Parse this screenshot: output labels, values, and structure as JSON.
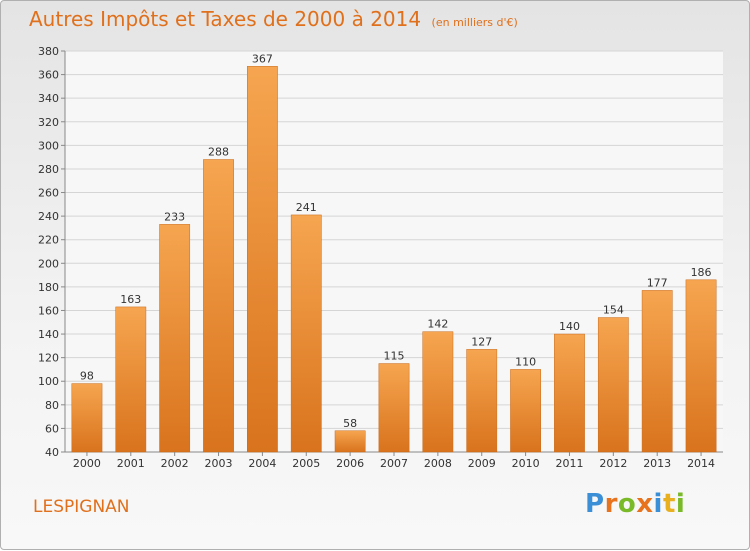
{
  "header": {
    "title": "Autres Impôts et Taxes de 2000 à 2014",
    "subtitle": "(en milliers d'€)"
  },
  "footer": {
    "commune": "LESPIGNAN",
    "brand": [
      "P",
      "r",
      "o",
      "x",
      "i",
      "t",
      "i"
    ],
    "brand_colors": [
      "#3a8fd6",
      "#e8731f",
      "#7ab928",
      "#e8731f",
      "#3a8fd6",
      "#e8b01f",
      "#7ab928"
    ]
  },
  "colors": {
    "bar_top": "#f6a550",
    "bar_bottom": "#d9731d",
    "accent": "#e0701c",
    "grid": "#d5d5d5",
    "axis_text": "#333333"
  },
  "chart_data": {
    "type": "bar",
    "title": "Autres Impôts et Taxes de 2000 à 2014",
    "subtitle": "(en milliers d'€)",
    "categories": [
      "2000",
      "2001",
      "2002",
      "2003",
      "2004",
      "2005",
      "2006",
      "2007",
      "2008",
      "2009",
      "2010",
      "2011",
      "2012",
      "2013",
      "2014"
    ],
    "values": [
      98,
      163,
      233,
      288,
      367,
      241,
      58,
      115,
      142,
      127,
      110,
      140,
      154,
      177,
      186
    ],
    "xlabel": "",
    "ylabel": "",
    "ylim": [
      40,
      380
    ],
    "yticks": [
      40,
      60,
      80,
      100,
      120,
      140,
      160,
      180,
      200,
      220,
      240,
      260,
      280,
      300,
      320,
      340,
      360,
      380
    ],
    "grid": true,
    "legend": "none"
  }
}
